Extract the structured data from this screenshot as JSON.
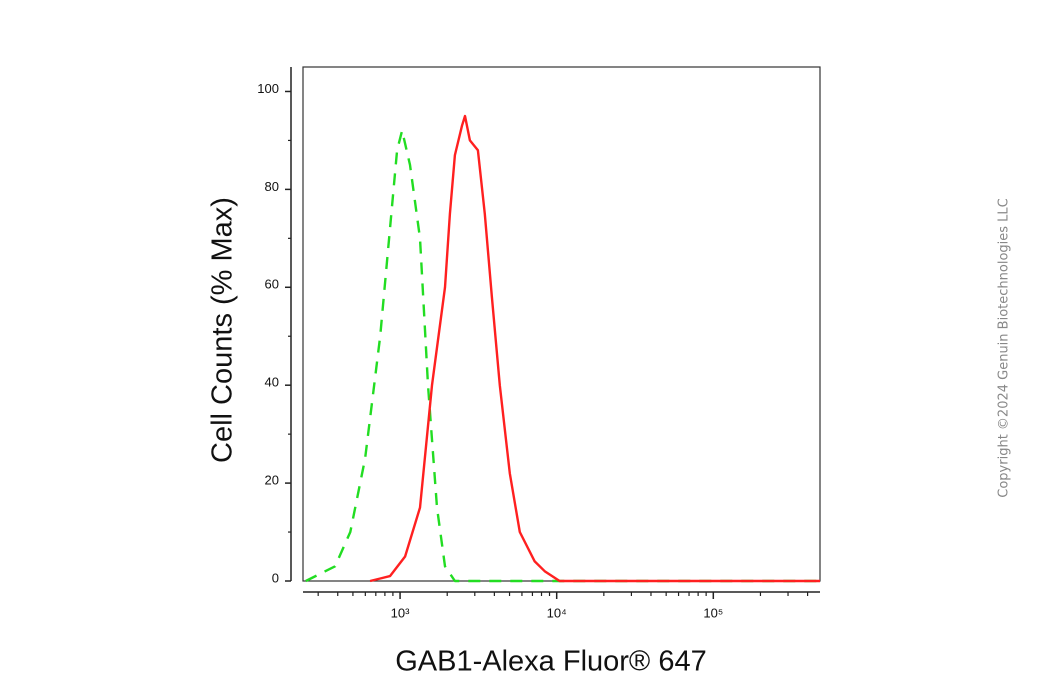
{
  "chart_data": {
    "type": "line",
    "y_label": "Cell Counts (% Max)",
    "x_label": "GAB1-Alexa Fluor® 647",
    "watermark": "Copyright ©2024 Genuin Biotechnologies LLC",
    "x_log": true,
    "xlim": [
      240,
      480000
    ],
    "ylim": [
      0,
      105
    ],
    "xticks": [
      {
        "value": 1000,
        "label": "10³"
      },
      {
        "value": 10000,
        "label": "10⁴"
      },
      {
        "value": 100000,
        "label": "10⁵"
      }
    ],
    "xminorticks": [
      300,
      400,
      500,
      600,
      700,
      800,
      900,
      2000,
      3000,
      4000,
      5000,
      6000,
      7000,
      8000,
      9000,
      20000,
      30000,
      40000,
      50000,
      60000,
      70000,
      80000,
      90000,
      200000,
      300000,
      400000
    ],
    "yticks": [
      0,
      20,
      40,
      60,
      80,
      100
    ],
    "yminorticks": [
      10,
      30,
      50,
      70,
      90
    ],
    "series": [
      {
        "color": "#22dd22",
        "dashed": true,
        "x": [
          250,
          385,
          481,
          598,
          747,
          863,
          957,
          1030,
          1158,
          1341,
          1507,
          1721,
          1935,
          2240,
          10000,
          480000
        ],
        "values": [
          0,
          3,
          10,
          25,
          50,
          72,
          88,
          92,
          85,
          70,
          40,
          15,
          3,
          0,
          0,
          0
        ]
      },
      {
        "color": "#ff2020",
        "dashed": false,
        "x": [
          644,
          863,
          1076,
          1341,
          1600,
          1935,
          2081,
          2240,
          2485,
          2596,
          2792,
          3140,
          3476,
          3855,
          4332,
          5020,
          5810,
          7240,
          8390,
          10440,
          480000
        ],
        "values": [
          0,
          1,
          5,
          15,
          40,
          60,
          75,
          87,
          93,
          95,
          90,
          88,
          75,
          58,
          40,
          22,
          10,
          4,
          2,
          0,
          0
        ]
      }
    ]
  }
}
